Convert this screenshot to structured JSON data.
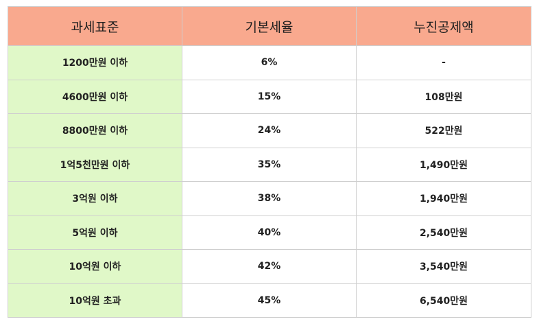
{
  "table": {
    "headers": [
      "과세표준",
      "기본세율",
      "누진공제액"
    ],
    "rows": [
      {
        "bracket": "1200만원 이하",
        "rate": "6%",
        "deduction": "-"
      },
      {
        "bracket": "4600만원 이하",
        "rate": "15%",
        "deduction": "108만원"
      },
      {
        "bracket": "8800만원 이하",
        "rate": "24%",
        "deduction": "522만원"
      },
      {
        "bracket": "1억5천만원 이하",
        "rate": "35%",
        "deduction": "1,490만원"
      },
      {
        "bracket": "3억원 이하",
        "rate": "38%",
        "deduction": "1,940만원"
      },
      {
        "bracket": "5억원 이하",
        "rate": "40%",
        "deduction": "2,540만원"
      },
      {
        "bracket": "10억원 이하",
        "rate": "42%",
        "deduction": "3,540만원"
      },
      {
        "bracket": "10억원 초과",
        "rate": "45%",
        "deduction": "6,540만원"
      }
    ]
  },
  "colors": {
    "header_background": "#f9a98e",
    "first_column_background": "#e0f8c8",
    "border": "#cfcfcf"
  }
}
